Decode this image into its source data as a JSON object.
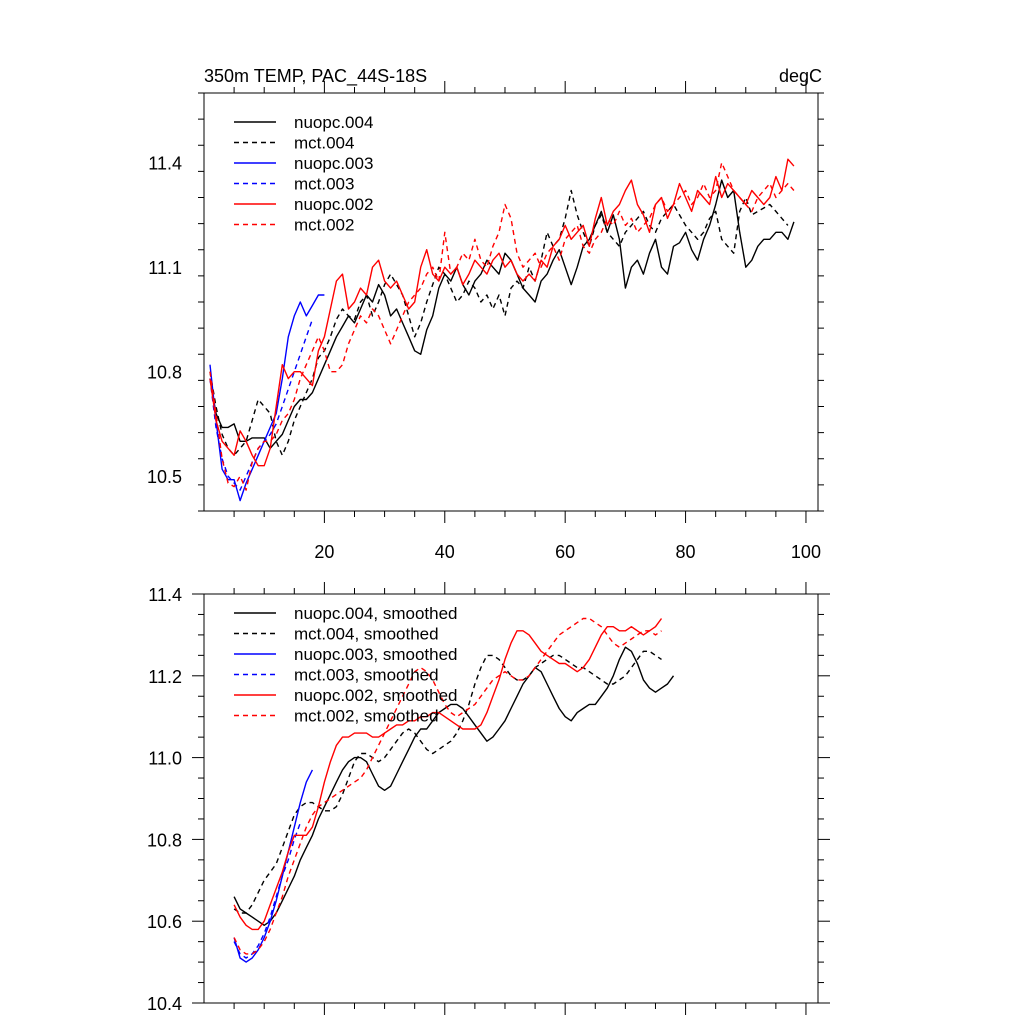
{
  "chart_data": [
    {
      "type": "line",
      "title": "350m TEMP, PAC_44S-18S",
      "units": "degC",
      "xlim": [
        0,
        102
      ],
      "ylim": [
        10.4,
        11.6
      ],
      "yticks": [
        10.5,
        10.8,
        11.1,
        11.4
      ],
      "ytick_labels": [
        "10.5",
        "10.8",
        "11.1",
        "11.4"
      ],
      "xticks": [
        20,
        40,
        60,
        80,
        100
      ],
      "xtick_labels": [
        "20",
        "40",
        "60",
        "80",
        "100"
      ],
      "legend_position": "top-left",
      "series": [
        {
          "name": "nuopc.004",
          "color": "#000000",
          "dashed": false,
          "x_start": 1,
          "values": [
            10.78,
            10.68,
            10.64,
            10.64,
            10.65,
            10.6,
            10.6,
            10.61,
            10.61,
            10.61,
            10.58,
            10.6,
            10.62,
            10.66,
            10.7,
            10.72,
            10.72,
            10.74,
            10.78,
            10.82,
            10.86,
            10.9,
            10.93,
            10.96,
            10.94,
            10.98,
            11.02,
            11.0,
            11.05,
            11.02,
            10.96,
            10.98,
            10.94,
            10.9,
            10.86,
            10.85,
            10.92,
            10.96,
            11.04,
            11.08,
            11.06,
            11.1,
            11.05,
            11.02,
            11.06,
            11.08,
            11.12,
            11.1,
            11.08,
            11.14,
            11.12,
            11.08,
            11.04,
            11.02,
            11.0,
            11.06,
            11.08,
            11.12,
            11.15,
            11.1,
            11.05,
            11.1,
            11.16,
            11.18,
            11.22,
            11.26,
            11.2,
            11.25,
            11.18,
            11.04,
            11.1,
            11.12,
            11.08,
            11.14,
            11.18,
            11.1,
            11.08,
            11.16,
            11.17,
            11.2,
            11.15,
            11.12,
            11.18,
            11.22,
            11.28,
            11.35,
            11.3,
            11.32,
            11.2,
            11.1,
            11.12,
            11.16,
            11.18,
            11.18,
            11.2,
            11.2,
            11.18,
            11.23
          ]
        },
        {
          "name": "mct.004",
          "color": "#000000",
          "dashed": true,
          "x_start": 1,
          "values": [
            10.8,
            10.7,
            10.62,
            10.58,
            10.56,
            10.58,
            10.6,
            10.66,
            10.72,
            10.7,
            10.68,
            10.6,
            10.56,
            10.6,
            10.66,
            10.7,
            10.74,
            10.78,
            10.84,
            10.86,
            10.9,
            10.95,
            10.98,
            10.96,
            10.95,
            11.0,
            11.02,
            10.96,
            11.0,
            11.05,
            11.08,
            11.05,
            11.02,
            10.96,
            10.9,
            10.94,
            11.0,
            11.05,
            11.1,
            11.08,
            11.04,
            11.0,
            11.02,
            11.06,
            11.04,
            11.0,
            11.02,
            10.98,
            11.02,
            10.96,
            11.04,
            11.06,
            11.04,
            11.1,
            11.06,
            11.12,
            11.2,
            11.16,
            11.18,
            11.24,
            11.32,
            11.25,
            11.2,
            11.16,
            11.22,
            11.25,
            11.2,
            11.18,
            11.16,
            11.2,
            11.22,
            11.24,
            11.26,
            11.22,
            11.2,
            11.24,
            11.26,
            11.28,
            11.25,
            11.22,
            11.2,
            11.18,
            11.2,
            11.24,
            11.26,
            11.18,
            11.16,
            11.14,
            11.26,
            11.3,
            11.25,
            11.26,
            11.27,
            11.28,
            11.26,
            11.24,
            11.22
          ]
        },
        {
          "name": "nuopc.003",
          "color": "#0000ff",
          "dashed": false,
          "x_start": 1,
          "values": [
            10.82,
            10.66,
            10.52,
            10.49,
            10.49,
            10.43,
            10.48,
            10.52,
            10.56,
            10.6,
            10.64,
            10.68,
            10.78,
            10.9,
            10.96,
            11.0,
            10.96,
            10.99,
            11.02,
            11.02
          ]
        },
        {
          "name": "mct.003",
          "color": "#0000ff",
          "dashed": true,
          "x_start": 1,
          "values": [
            10.78,
            10.64,
            10.55,
            10.5,
            10.48,
            10.46,
            10.5,
            10.54,
            10.58,
            10.6,
            10.62,
            10.65,
            10.7,
            10.75,
            10.8,
            10.85,
            10.9,
            10.95
          ]
        },
        {
          "name": "nuopc.002",
          "color": "#ff0000",
          "dashed": false,
          "x_start": 1,
          "values": [
            10.78,
            10.66,
            10.6,
            10.58,
            10.56,
            10.63,
            10.6,
            10.56,
            10.53,
            10.53,
            10.58,
            10.7,
            10.82,
            10.78,
            10.8,
            10.8,
            10.78,
            10.76,
            10.86,
            10.9,
            10.98,
            11.06,
            11.08,
            10.98,
            11.0,
            11.04,
            11.02,
            11.1,
            11.12,
            11.06,
            11.04,
            11.06,
            11.02,
            10.98,
            11.0,
            11.1,
            11.15,
            11.08,
            11.06,
            11.1,
            11.08,
            11.1,
            11.05,
            11.08,
            11.12,
            11.1,
            11.08,
            11.12,
            11.14,
            11.1,
            11.12,
            11.08,
            11.06,
            11.08,
            11.06,
            11.12,
            11.1,
            11.16,
            11.18,
            11.22,
            11.18,
            11.2,
            11.22,
            11.16,
            11.24,
            11.3,
            11.22,
            11.26,
            11.28,
            11.32,
            11.35,
            11.28,
            11.25,
            11.2,
            11.28,
            11.3,
            11.24,
            11.28,
            11.34,
            11.3,
            11.26,
            11.32,
            11.3,
            11.28,
            11.36,
            11.3,
            11.34,
            11.32,
            11.3,
            11.28,
            11.32,
            11.3,
            11.28,
            11.3,
            11.36,
            11.32,
            11.41,
            11.39
          ]
        },
        {
          "name": "mct.002",
          "color": "#ff0000",
          "dashed": true,
          "x_start": 1,
          "values": [
            10.8,
            10.68,
            10.55,
            10.48,
            10.47,
            10.5,
            10.46,
            10.54,
            10.58,
            10.6,
            10.6,
            10.62,
            10.66,
            10.68,
            10.72,
            10.78,
            10.82,
            10.86,
            10.9,
            10.86,
            10.8,
            10.8,
            10.82,
            10.88,
            10.92,
            10.96,
            10.94,
            10.98,
            10.96,
            10.92,
            10.88,
            10.92,
            10.96,
            11.0,
            11.02,
            11.04,
            11.08,
            11.1,
            11.06,
            11.2,
            11.08,
            11.1,
            11.14,
            11.12,
            11.18,
            11.12,
            11.1,
            11.16,
            11.2,
            11.28,
            11.24,
            11.14,
            11.1,
            11.12,
            11.14,
            11.1,
            11.14,
            11.16,
            11.12,
            11.18,
            11.2,
            11.22,
            11.16,
            11.14,
            11.18,
            11.2,
            11.24,
            11.22,
            11.26,
            11.22,
            11.24,
            11.2,
            11.22,
            11.24,
            11.28,
            11.3,
            11.26,
            11.28,
            11.3,
            11.32,
            11.28,
            11.3,
            11.34,
            11.3,
            11.32,
            11.4,
            11.36,
            11.32,
            11.3,
            11.28,
            11.26,
            11.3,
            11.32,
            11.34,
            11.3,
            11.32,
            11.34,
            11.32
          ]
        }
      ]
    },
    {
      "type": "line",
      "title": "",
      "xlim": [
        0,
        102
      ],
      "ylim": [
        10.4,
        11.4
      ],
      "yticks": [
        10.4,
        10.6,
        10.8,
        11.0,
        11.2,
        11.4
      ],
      "ytick_labels": [
        "10.4",
        "10.6",
        "10.8",
        "11.0",
        "11.2",
        "11.4"
      ],
      "xticks": [
        20,
        40,
        60,
        80,
        100
      ],
      "legend_position": "top-left",
      "series": [
        {
          "name": "nuopc.004, smoothed",
          "color": "#000000",
          "dashed": false,
          "x_start": 5,
          "values": [
            10.66,
            10.63,
            10.62,
            10.61,
            10.6,
            10.59,
            10.6,
            10.62,
            10.65,
            10.68,
            10.71,
            10.75,
            10.78,
            10.81,
            10.85,
            10.88,
            10.91,
            10.94,
            10.97,
            10.99,
            11.0,
            11.0,
            10.99,
            10.96,
            10.93,
            10.92,
            10.93,
            10.96,
            10.99,
            11.02,
            11.05,
            11.07,
            11.07,
            11.09,
            11.11,
            11.12,
            11.13,
            11.13,
            11.12,
            11.1,
            11.08,
            11.06,
            11.04,
            11.05,
            11.07,
            11.09,
            11.12,
            11.15,
            11.18,
            11.2,
            11.22,
            11.21,
            11.18,
            11.15,
            11.12,
            11.1,
            11.09,
            11.11,
            11.12,
            11.13,
            11.13,
            11.15,
            11.17,
            11.2,
            11.24,
            11.27,
            11.26,
            11.23,
            11.19,
            11.17,
            11.16,
            11.17,
            11.18,
            11.2
          ]
        },
        {
          "name": "mct.004, smoothed",
          "color": "#000000",
          "dashed": true,
          "x_start": 5,
          "values": [
            10.63,
            10.62,
            10.62,
            10.64,
            10.67,
            10.7,
            10.72,
            10.74,
            10.78,
            10.82,
            10.86,
            10.88,
            10.89,
            10.89,
            10.88,
            10.87,
            10.87,
            10.88,
            10.91,
            10.95,
            10.99,
            11.01,
            11.01,
            11.0,
            10.99,
            11.0,
            11.02,
            11.04,
            11.06,
            11.07,
            11.06,
            11.04,
            11.02,
            11.01,
            11.02,
            11.03,
            11.04,
            11.06,
            11.09,
            11.13,
            11.18,
            11.22,
            11.25,
            11.25,
            11.24,
            11.22,
            11.2,
            11.19,
            11.19,
            11.2,
            11.22,
            11.23,
            11.24,
            11.25,
            11.25,
            11.24,
            11.23,
            11.22,
            11.22,
            11.21,
            11.2,
            11.19,
            11.18,
            11.18,
            11.19,
            11.2,
            11.22,
            11.24,
            11.26,
            11.26,
            11.25,
            11.24
          ]
        },
        {
          "name": "nuopc.003, smoothed",
          "color": "#0000ff",
          "dashed": false,
          "x_start": 5,
          "values": [
            10.56,
            10.51,
            10.5,
            10.51,
            10.53,
            10.56,
            10.6,
            10.65,
            10.71,
            10.77,
            10.83,
            10.89,
            10.94,
            10.97
          ]
        },
        {
          "name": "mct.003, smoothed",
          "color": "#0000ff",
          "dashed": true,
          "x_start": 5,
          "values": [
            10.55,
            10.52,
            10.51,
            10.52,
            10.54,
            10.57,
            10.61,
            10.66,
            10.71,
            10.75,
            10.8,
            10.84
          ]
        },
        {
          "name": "nuopc.002, smoothed",
          "color": "#ff0000",
          "dashed": false,
          "x_start": 5,
          "values": [
            10.64,
            10.61,
            10.59,
            10.58,
            10.58,
            10.6,
            10.64,
            10.68,
            10.72,
            10.77,
            10.81,
            10.81,
            10.81,
            10.83,
            10.88,
            10.94,
            10.99,
            11.03,
            11.05,
            11.05,
            11.06,
            11.06,
            11.06,
            11.05,
            11.05,
            11.06,
            11.07,
            11.08,
            11.08,
            11.09,
            11.09,
            11.1,
            11.1,
            11.11,
            11.11,
            11.1,
            11.09,
            11.08,
            11.07,
            11.07,
            11.07,
            11.08,
            11.11,
            11.15,
            11.19,
            11.24,
            11.28,
            11.31,
            11.31,
            11.3,
            11.28,
            11.26,
            11.25,
            11.24,
            11.23,
            11.23,
            11.22,
            11.21,
            11.22,
            11.24,
            11.27,
            11.3,
            11.32,
            11.32,
            11.31,
            11.31,
            11.32,
            11.31,
            11.3,
            11.31,
            11.32,
            11.34
          ]
        },
        {
          "name": "mct.002, smoothed",
          "color": "#ff0000",
          "dashed": true,
          "x_start": 5,
          "values": [
            10.56,
            10.53,
            10.52,
            10.52,
            10.53,
            10.55,
            10.58,
            10.62,
            10.66,
            10.71,
            10.75,
            10.79,
            10.83,
            10.86,
            10.88,
            10.89,
            10.9,
            10.91,
            10.92,
            10.93,
            10.94,
            10.95,
            10.97,
            11.0,
            11.03,
            11.06,
            11.09,
            11.12,
            11.15,
            11.18,
            11.21,
            11.22,
            11.21,
            11.19,
            11.16,
            11.13,
            11.11,
            11.1,
            11.11,
            11.12,
            11.13,
            11.15,
            11.17,
            11.19,
            11.2,
            11.21,
            11.2,
            11.19,
            11.19,
            11.2,
            11.22,
            11.24,
            11.26,
            11.28,
            11.3,
            11.31,
            11.32,
            11.33,
            11.34,
            11.34,
            11.33,
            11.32,
            11.3,
            11.28,
            11.27,
            11.28,
            11.29,
            11.3,
            11.31,
            11.31,
            11.3,
            11.31
          ]
        }
      ]
    }
  ]
}
